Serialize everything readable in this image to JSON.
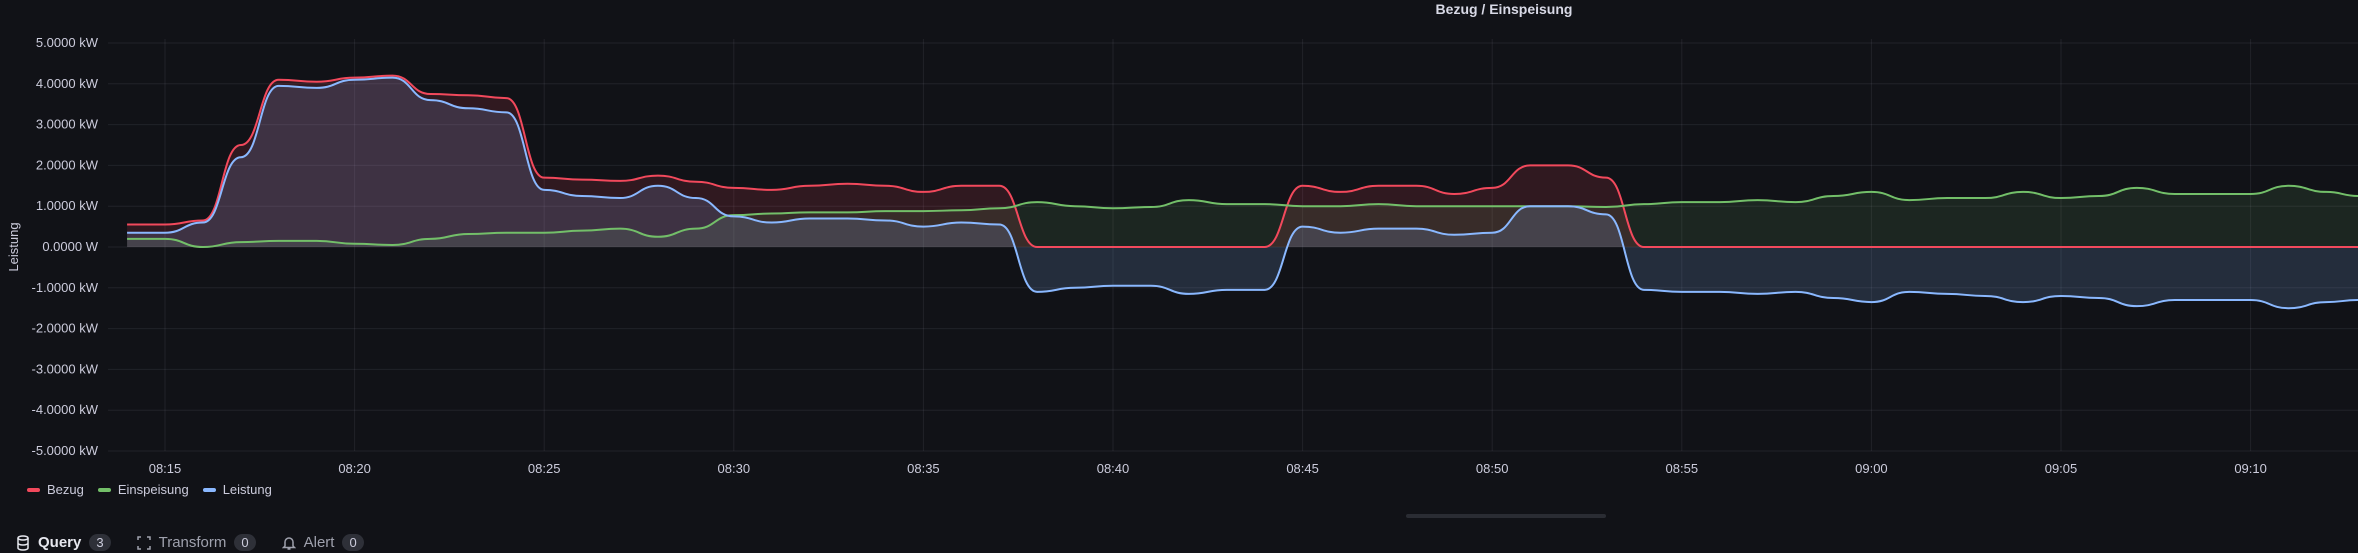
{
  "panel": {
    "title": "Bezug / Einspeisung"
  },
  "chart_data": {
    "type": "area",
    "title": "Bezug / Einspeisung",
    "ylabel": "Leistung",
    "xlabel": "",
    "ylim": [
      -5,
      5
    ],
    "y_unit": "kW",
    "yticks": [
      5,
      4,
      3,
      2,
      1,
      0,
      -1,
      -2,
      -3,
      -4,
      -5
    ],
    "ytick_labels": [
      "5.0000 kW",
      "4.0000 kW",
      "3.0000 kW",
      "2.0000 kW",
      "1.0000 kW",
      "0.0000 W",
      "-1.0000 kW",
      "-2.0000 kW",
      "-3.0000 kW",
      "-4.0000 kW",
      "-5.0000 kW"
    ],
    "xlim": [
      "08:13:48",
      "09:12:50"
    ],
    "xtick_labels": [
      "08:15",
      "08:20",
      "08:25",
      "08:30",
      "08:35",
      "08:40",
      "08:45",
      "08:50",
      "08:55",
      "09:00",
      "09:05",
      "09:10"
    ],
    "grid": true,
    "legend_placement": "bottom-left",
    "x": [
      "08:14",
      "08:15",
      "08:16",
      "08:17",
      "08:18",
      "08:19",
      "08:20",
      "08:21",
      "08:22",
      "08:23",
      "08:24",
      "08:25",
      "08:26",
      "08:27",
      "08:28",
      "08:29",
      "08:30",
      "08:31",
      "08:32",
      "08:33",
      "08:34",
      "08:35",
      "08:36",
      "08:37",
      "08:38",
      "08:39",
      "08:40",
      "08:41",
      "08:42",
      "08:43",
      "08:44",
      "08:45",
      "08:46",
      "08:47",
      "08:48",
      "08:49",
      "08:50",
      "08:51",
      "08:52",
      "08:53",
      "08:54",
      "08:55",
      "08:56",
      "08:57",
      "08:58",
      "08:59",
      "09:00",
      "09:01",
      "09:02",
      "09:03",
      "09:04",
      "09:05",
      "09:06",
      "09:07",
      "09:08",
      "09:09",
      "09:10",
      "09:11",
      "09:12",
      "09:12:50"
    ],
    "series": [
      {
        "name": "Bezug",
        "color": "#F2495C",
        "fill": "#F2495C",
        "values": [
          0.55,
          0.55,
          0.65,
          2.5,
          4.1,
          4.05,
          4.15,
          4.2,
          3.75,
          3.72,
          3.65,
          1.7,
          1.65,
          1.62,
          1.75,
          1.6,
          1.45,
          1.4,
          1.5,
          1.55,
          1.5,
          1.35,
          1.5,
          1.5,
          0,
          0,
          0,
          0,
          0,
          0,
          0,
          1.5,
          1.35,
          1.5,
          1.5,
          1.3,
          1.45,
          2.0,
          2.0,
          1.7,
          0,
          0,
          0,
          0,
          0,
          0,
          0,
          0,
          0,
          0,
          0,
          0,
          0,
          0,
          0,
          0,
          0,
          0,
          0,
          0
        ]
      },
      {
        "name": "Einspeisung",
        "color": "#73BF69",
        "fill": "#73BF69",
        "values": [
          0.2,
          0.2,
          0.0,
          0.12,
          0.15,
          0.15,
          0.08,
          0.05,
          0.2,
          0.32,
          0.35,
          0.35,
          0.4,
          0.45,
          0.25,
          0.45,
          0.78,
          0.82,
          0.85,
          0.85,
          0.88,
          0.88,
          0.9,
          0.95,
          1.1,
          1.0,
          0.95,
          0.98,
          1.15,
          1.05,
          1.05,
          1.0,
          1.0,
          1.05,
          1.0,
          1.0,
          1.0,
          1.0,
          1.0,
          0.98,
          1.05,
          1.1,
          1.1,
          1.15,
          1.1,
          1.25,
          1.35,
          1.15,
          1.2,
          1.2,
          1.35,
          1.2,
          1.25,
          1.45,
          1.3,
          1.3,
          1.3,
          1.5,
          1.35,
          1.25
        ]
      },
      {
        "name": "Leistung",
        "color": "#8AB8FF",
        "fill": "#8AB8FF",
        "values": [
          0.35,
          0.35,
          0.6,
          2.2,
          3.95,
          3.9,
          4.1,
          4.15,
          3.6,
          3.4,
          3.3,
          1.4,
          1.25,
          1.2,
          1.5,
          1.2,
          0.75,
          0.6,
          0.7,
          0.7,
          0.65,
          0.5,
          0.6,
          0.55,
          -1.1,
          -1.0,
          -0.95,
          -0.95,
          -1.15,
          -1.05,
          -1.05,
          0.5,
          0.35,
          0.45,
          0.45,
          0.3,
          0.35,
          1.0,
          1.0,
          0.8,
          -1.05,
          -1.1,
          -1.1,
          -1.15,
          -1.1,
          -1.25,
          -1.35,
          -1.1,
          -1.15,
          -1.2,
          -1.35,
          -1.2,
          -1.25,
          -1.45,
          -1.3,
          -1.3,
          -1.3,
          -1.5,
          -1.35,
          -1.3
        ]
      }
    ]
  },
  "tabs": [
    {
      "label": "Query",
      "count": "3",
      "icon": "database-icon"
    },
    {
      "label": "Transform",
      "count": "0",
      "icon": "transform-icon"
    },
    {
      "label": "Alert",
      "count": "0",
      "icon": "bell-icon"
    }
  ]
}
